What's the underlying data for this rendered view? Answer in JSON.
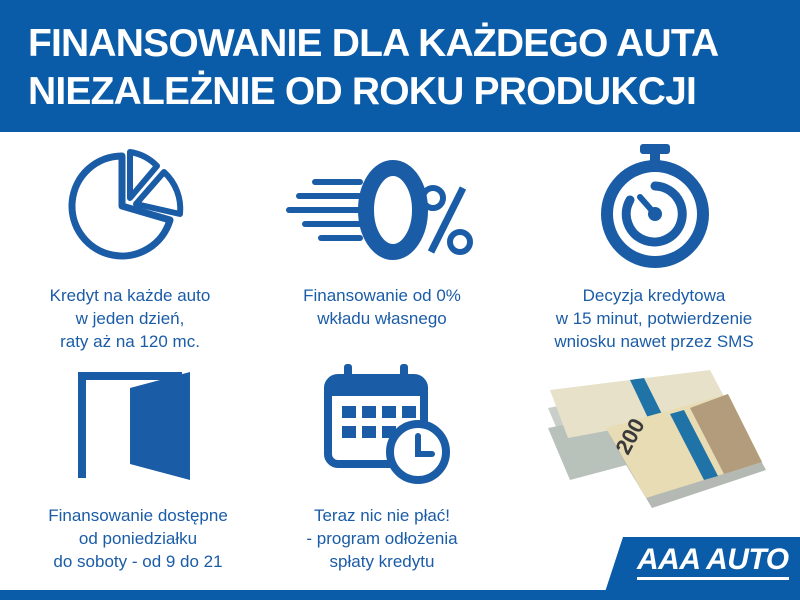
{
  "header": {
    "line1": "FINANSOWANIE DLA KAŻDEGO AUTA",
    "line2": "NIEZALEŻNIE OD ROKU PRODUKCJI"
  },
  "features": [
    {
      "icon": "pie-chart-icon",
      "lines": [
        "Kredyt na każde auto",
        "w jeden dzień,",
        "raty aż na 120 mc."
      ]
    },
    {
      "icon": "zero-percent-icon",
      "lines": [
        "Finansowanie od 0%",
        "wkładu własnego"
      ]
    },
    {
      "icon": "stopwatch-icon",
      "lines": [
        "Decyzja kredytowa",
        "w 15 minut, potwierdzenie",
        "wniosku nawet przez SMS"
      ]
    },
    {
      "icon": "open-door-icon",
      "lines": [
        "Finansowanie dostępne",
        "od poniedziałku",
        "do soboty - od 9 do 21"
      ]
    },
    {
      "icon": "calendar-clock-icon",
      "lines": [
        "Teraz nic nie płać!",
        "- program odłożenia",
        "spłaty kredytu"
      ]
    }
  ],
  "logo": "AAA AUTO",
  "colors": {
    "brand_blue": "#0b5ca8",
    "text_blue": "#1b5ca7"
  }
}
